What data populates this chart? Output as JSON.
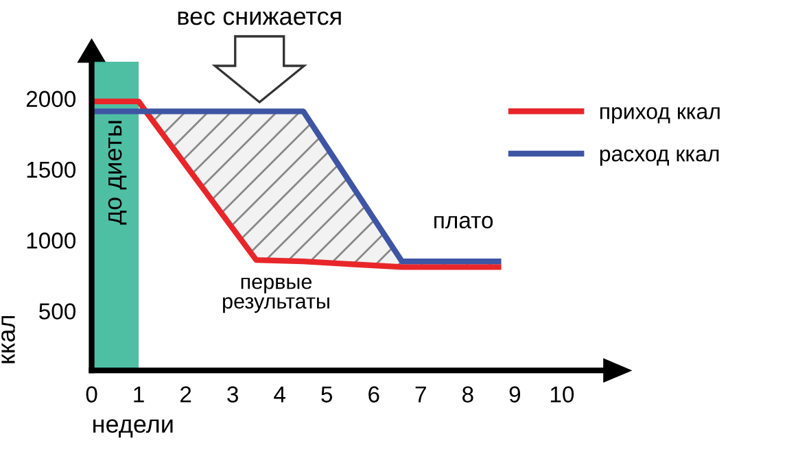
{
  "chart_data": {
    "type": "line",
    "xlabel": "недели",
    "ylabel": "ккал",
    "x": [
      0,
      1,
      1.15,
      3.5,
      4.5,
      6.6,
      8.65
    ],
    "series": [
      {
        "name": "приход ккал",
        "color": "#e8262a",
        "values": [
          1980,
          1980,
          1910,
          860,
          850,
          810,
          810
        ]
      },
      {
        "name": "расход ккал",
        "color": "#3e55a4",
        "values": [
          1910,
          1910,
          1910,
          1910,
          1910,
          850,
          850
        ],
        "lower": [
          null,
          null,
          1910,
          860,
          850,
          810,
          810
        ],
        "upper": [
          null,
          null,
          1910,
          1910,
          1910,
          850,
          850
        ]
      }
    ],
    "xlim": [
      0,
      10.9
    ],
    "ylim": [
      80,
      2260
    ],
    "xticks": [
      0,
      1,
      2,
      3,
      4,
      5,
      6,
      7,
      8,
      9,
      10
    ],
    "yticks": [
      500,
      1000,
      1500,
      2000
    ],
    "bands": [
      {
        "axis": "x",
        "from": 0,
        "to": 1,
        "label": "до диеты",
        "color": "#3cb89a"
      }
    ],
    "annotations": [
      "вес снижается",
      "плато",
      "первые\nрезультаты"
    ],
    "legend": "right",
    "grid": false,
    "line_style": "solid",
    "marker": "none"
  }
}
